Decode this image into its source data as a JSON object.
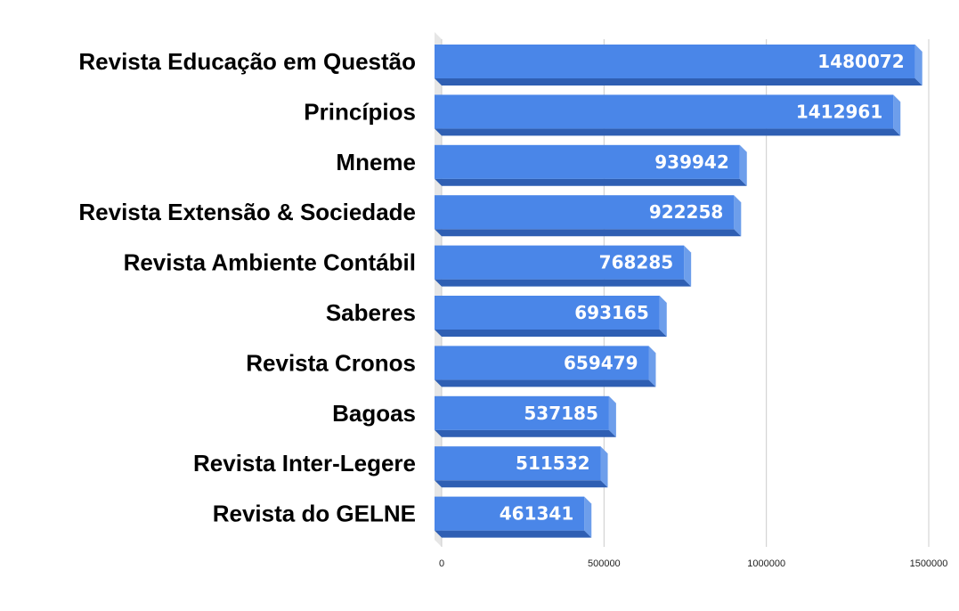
{
  "chart_data": {
    "type": "bar",
    "orientation": "horizontal",
    "style": "3d",
    "categories": [
      "Revista Educação em Questão",
      "Princípios",
      "Mneme",
      "Revista Extensão & Sociedade",
      "Revista Ambiente Contábil",
      "Saberes",
      "Revista Cronos",
      "Bagoas",
      "Revista Inter-Legere",
      "Revista do GELNE"
    ],
    "values": [
      1480072,
      1412961,
      939942,
      922258,
      768285,
      693165,
      659479,
      537185,
      511532,
      461341
    ],
    "data_labels": [
      "1480072",
      "1412961",
      "939942",
      "922258",
      "768285",
      "693165",
      "659479",
      "537185",
      "511532",
      "461341"
    ],
    "title": "",
    "xlabel": "",
    "ylabel": "",
    "xlim": [
      0,
      1500000
    ],
    "x_ticks": [
      0,
      500000,
      1000000,
      1500000
    ],
    "x_tick_labels": [
      "0",
      "500000",
      "1000000",
      "1500000"
    ],
    "grid": true,
    "legend": "none",
    "colors": {
      "bar_front": "#4a86e8",
      "bar_side": "#6d9eeb",
      "bar_bottom": "#2f5fb3",
      "floor": "#e6e6e6",
      "gridline": "#cccccc"
    }
  }
}
